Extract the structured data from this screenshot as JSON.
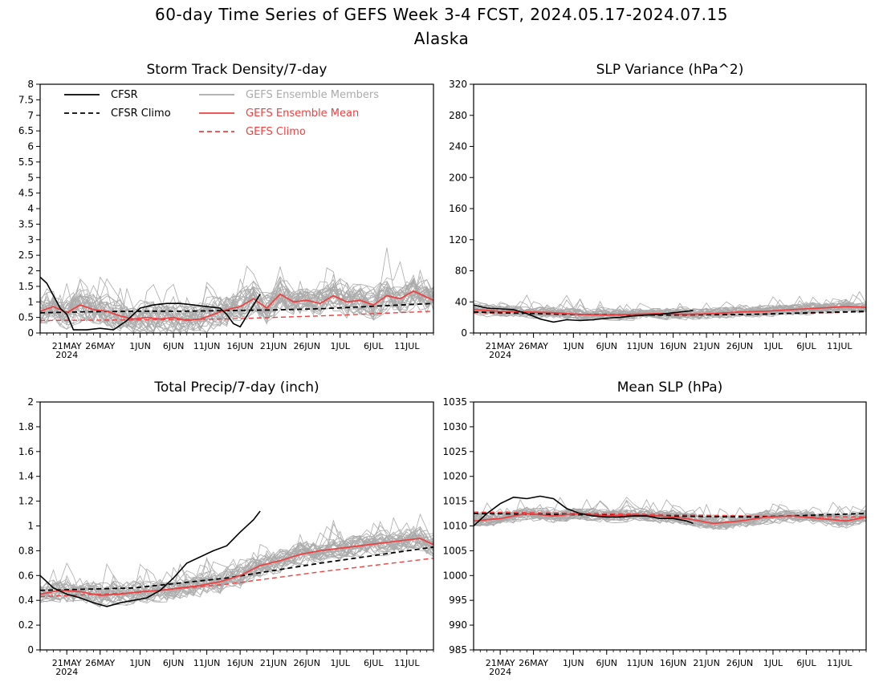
{
  "title": "60-day Time Series of GEFS Week 3-4 FCST, 2024.05.17-2024.07.15",
  "subtitle": "Alaska",
  "legend": {
    "cfsr": "CFSR",
    "cfsr_climo": "CFSR Climo",
    "members": "GEFS Ensemble Members",
    "mean": "GEFS Ensemble Mean",
    "gefs_climo": "GEFS Climo"
  },
  "colors": {
    "cfsr": "#000000",
    "cfsr_climo": "#000000",
    "members": "#aaaaaa",
    "mean": "#f04040",
    "gefs_climo": "#f04040",
    "axis": "#000000"
  },
  "x_axis": {
    "start_date": "2024-05-17",
    "end_date": "2024-07-15",
    "tick_dates": [
      "2024-05-21",
      "2024-05-26",
      "2024-06-01",
      "2024-06-06",
      "2024-06-11",
      "2024-06-16",
      "2024-06-21",
      "2024-06-26",
      "2024-07-01",
      "2024-07-06",
      "2024-07-11"
    ],
    "tick_labels": [
      "21MAY",
      "26MAY",
      "1JUN",
      "6JUN",
      "11JUN",
      "16JUN",
      "21JUN",
      "26JUN",
      "1JUL",
      "6JUL",
      "11JUL"
    ],
    "year_label": "2024"
  },
  "chart_data": [
    {
      "type": "line",
      "title": "Storm Track Density/7-day",
      "ylim": [
        0,
        8
      ],
      "yticks": [
        "0",
        "0.5",
        "1",
        "1.5",
        "2",
        "2.5",
        "3",
        "3.5",
        "4",
        "4.5",
        "5",
        "5.5",
        "6",
        "6.5",
        "7",
        "7.5",
        "8"
      ],
      "has_legend": true,
      "member_count": 30,
      "member_spread": 0.85,
      "cfsr": {
        "x": [
          "2024-05-17",
          "2024-05-18",
          "2024-05-19",
          "2024-05-20",
          "2024-05-21",
          "2024-05-22",
          "2024-05-24",
          "2024-05-26",
          "2024-05-28",
          "2024-05-30",
          "2024-06-01",
          "2024-06-03",
          "2024-06-05",
          "2024-06-07",
          "2024-06-09",
          "2024-06-11",
          "2024-06-13",
          "2024-06-14",
          "2024-06-15",
          "2024-06-16",
          "2024-06-18",
          "2024-06-19"
        ],
        "y": [
          1.8,
          1.6,
          1.2,
          0.8,
          0.6,
          0.1,
          0.1,
          0.15,
          0.1,
          0.4,
          0.8,
          0.9,
          0.95,
          0.95,
          0.9,
          0.85,
          0.8,
          0.6,
          0.3,
          0.2,
          0.9,
          1.25
        ]
      },
      "cfsr_climo": {
        "x": [
          "2024-05-17",
          "2024-05-24",
          "2024-05-31",
          "2024-06-07",
          "2024-06-14",
          "2024-06-21",
          "2024-06-28",
          "2024-07-05",
          "2024-07-15"
        ],
        "y": [
          0.65,
          0.68,
          0.7,
          0.7,
          0.72,
          0.74,
          0.78,
          0.85,
          0.95
        ]
      },
      "gefs_mean": {
        "x": [
          "2024-05-17",
          "2024-05-19",
          "2024-05-21",
          "2024-05-23",
          "2024-05-25",
          "2024-05-27",
          "2024-05-29",
          "2024-05-31",
          "2024-06-02",
          "2024-06-04",
          "2024-06-06",
          "2024-06-08",
          "2024-06-10",
          "2024-06-12",
          "2024-06-14",
          "2024-06-16",
          "2024-06-18",
          "2024-06-20",
          "2024-06-22",
          "2024-06-24",
          "2024-06-26",
          "2024-06-28",
          "2024-06-30",
          "2024-07-02",
          "2024-07-04",
          "2024-07-06",
          "2024-07-08",
          "2024-07-10",
          "2024-07-12",
          "2024-07-15"
        ],
        "y": [
          0.7,
          0.85,
          0.65,
          0.9,
          0.75,
          0.7,
          0.55,
          0.45,
          0.5,
          0.45,
          0.5,
          0.4,
          0.45,
          0.6,
          0.75,
          0.85,
          1.1,
          0.8,
          1.25,
          1.0,
          1.05,
          0.95,
          1.2,
          1.0,
          1.05,
          0.9,
          1.2,
          1.1,
          1.35,
          1.05
        ]
      },
      "gefs_climo": {
        "x": [
          "2024-05-17",
          "2024-05-31",
          "2024-06-14",
          "2024-06-28",
          "2024-07-15"
        ],
        "y": [
          0.4,
          0.42,
          0.45,
          0.55,
          0.7
        ]
      }
    },
    {
      "type": "line",
      "title": "SLP Variance (hPa^2)",
      "ylim": [
        0,
        320
      ],
      "yticks": [
        "0",
        "40",
        "80",
        "120",
        "160",
        "200",
        "240",
        "280",
        "320"
      ],
      "has_legend": false,
      "member_count": 30,
      "member_spread": 12,
      "cfsr": {
        "x": [
          "2024-05-17",
          "2024-05-19",
          "2024-05-21",
          "2024-05-23",
          "2024-05-25",
          "2024-05-27",
          "2024-05-29",
          "2024-05-31",
          "2024-06-02",
          "2024-06-04",
          "2024-06-06",
          "2024-06-08",
          "2024-06-10",
          "2024-06-12",
          "2024-06-14",
          "2024-06-16",
          "2024-06-18",
          "2024-06-19"
        ],
        "y": [
          36,
          32,
          31,
          30,
          25,
          18,
          14,
          17,
          16,
          17,
          19,
          20,
          22,
          23,
          24,
          26,
          28,
          29
        ]
      },
      "cfsr_climo": {
        "x": [
          "2024-05-17",
          "2024-05-31",
          "2024-06-14",
          "2024-06-28",
          "2024-07-15"
        ],
        "y": [
          27,
          24,
          23,
          24,
          28
        ]
      },
      "gefs_mean": {
        "x": [
          "2024-05-17",
          "2024-05-21",
          "2024-05-25",
          "2024-05-29",
          "2024-06-02",
          "2024-06-06",
          "2024-06-10",
          "2024-06-14",
          "2024-06-18",
          "2024-06-22",
          "2024-06-26",
          "2024-06-30",
          "2024-07-04",
          "2024-07-08",
          "2024-07-12",
          "2024-07-15"
        ],
        "y": [
          30,
          28,
          27,
          26,
          24,
          23,
          24,
          25,
          24,
          25,
          27,
          28,
          30,
          32,
          34,
          33
        ]
      },
      "gefs_climo": {
        "x": [
          "2024-05-17",
          "2024-05-31",
          "2024-06-14",
          "2024-06-28",
          "2024-07-15"
        ],
        "y": [
          26,
          24,
          23,
          24,
          27
        ]
      }
    },
    {
      "type": "line",
      "title": "Total Precip/7-day (inch)",
      "ylim": [
        0,
        2
      ],
      "yticks": [
        "0",
        "0.2",
        "0.4",
        "0.6",
        "0.8",
        "1",
        "1.2",
        "1.4",
        "1.6",
        "1.8",
        "2"
      ],
      "has_legend": false,
      "member_count": 30,
      "member_spread": 0.15,
      "cfsr": {
        "x": [
          "2024-05-17",
          "2024-05-19",
          "2024-05-21",
          "2024-05-23",
          "2024-05-25",
          "2024-05-27",
          "2024-05-29",
          "2024-05-31",
          "2024-06-02",
          "2024-06-04",
          "2024-06-06",
          "2024-06-08",
          "2024-06-10",
          "2024-06-12",
          "2024-06-14",
          "2024-06-16",
          "2024-06-18",
          "2024-06-19"
        ],
        "y": [
          0.6,
          0.5,
          0.45,
          0.42,
          0.38,
          0.35,
          0.38,
          0.4,
          0.42,
          0.48,
          0.58,
          0.7,
          0.75,
          0.8,
          0.84,
          0.95,
          1.05,
          1.12
        ]
      },
      "cfsr_climo": {
        "x": [
          "2024-05-17",
          "2024-05-31",
          "2024-06-14",
          "2024-06-28",
          "2024-07-15"
        ],
        "y": [
          0.48,
          0.5,
          0.58,
          0.7,
          0.83
        ]
      },
      "gefs_mean": {
        "x": [
          "2024-05-17",
          "2024-05-20",
          "2024-05-23",
          "2024-05-26",
          "2024-05-29",
          "2024-06-01",
          "2024-06-04",
          "2024-06-07",
          "2024-06-10",
          "2024-06-13",
          "2024-06-16",
          "2024-06-19",
          "2024-06-22",
          "2024-06-25",
          "2024-06-28",
          "2024-07-01",
          "2024-07-04",
          "2024-07-07",
          "2024-07-10",
          "2024-07-13",
          "2024-07-15"
        ],
        "y": [
          0.45,
          0.48,
          0.47,
          0.44,
          0.45,
          0.47,
          0.48,
          0.5,
          0.52,
          0.55,
          0.6,
          0.68,
          0.72,
          0.77,
          0.8,
          0.82,
          0.84,
          0.86,
          0.88,
          0.9,
          0.85
        ]
      },
      "gefs_climo": {
        "x": [
          "2024-05-17",
          "2024-05-31",
          "2024-06-14",
          "2024-06-28",
          "2024-07-15"
        ],
        "y": [
          0.43,
          0.46,
          0.53,
          0.63,
          0.74
        ]
      }
    },
    {
      "type": "line",
      "title": "Mean SLP (hPa)",
      "ylim": [
        985,
        1035
      ],
      "yticks": [
        "985",
        "990",
        "995",
        "1000",
        "1005",
        "1010",
        "1015",
        "1020",
        "1025",
        "1030",
        "1035"
      ],
      "has_legend": false,
      "member_count": 30,
      "member_spread": 2.2,
      "cfsr": {
        "x": [
          "2024-05-17",
          "2024-05-19",
          "2024-05-21",
          "2024-05-23",
          "2024-05-25",
          "2024-05-27",
          "2024-05-29",
          "2024-05-31",
          "2024-06-02",
          "2024-06-04",
          "2024-06-06",
          "2024-06-08",
          "2024-06-10",
          "2024-06-12",
          "2024-06-14",
          "2024-06-16",
          "2024-06-18",
          "2024-06-19"
        ],
        "y": [
          1010,
          1012.5,
          1014.5,
          1015.8,
          1015.5,
          1016,
          1015.5,
          1013.5,
          1012.5,
          1012,
          1011.8,
          1011.8,
          1012,
          1012,
          1011.5,
          1011.5,
          1011,
          1010.5
        ]
      },
      "cfsr_climo": {
        "x": [
          "2024-05-17",
          "2024-05-31",
          "2024-06-14",
          "2024-06-28",
          "2024-07-15"
        ],
        "y": [
          1012.5,
          1012.3,
          1012.0,
          1011.8,
          1012.5
        ]
      },
      "gefs_mean": {
        "x": [
          "2024-05-17",
          "2024-05-21",
          "2024-05-25",
          "2024-05-29",
          "2024-06-02",
          "2024-06-06",
          "2024-06-10",
          "2024-06-14",
          "2024-06-18",
          "2024-06-22",
          "2024-06-26",
          "2024-06-30",
          "2024-07-04",
          "2024-07-08",
          "2024-07-12",
          "2024-07-15"
        ],
        "y": [
          1011,
          1011.5,
          1012.5,
          1012,
          1012.5,
          1012,
          1012.3,
          1012,
          1011.5,
          1010.5,
          1011,
          1011.8,
          1012,
          1011.5,
          1011,
          1011.8
        ]
      },
      "gefs_climo": {
        "x": [
          "2024-05-17",
          "2024-05-31",
          "2024-06-14",
          "2024-06-28",
          "2024-07-15"
        ],
        "y": [
          1012.8,
          1012.6,
          1012.3,
          1012.0,
          1011.8
        ]
      }
    }
  ]
}
